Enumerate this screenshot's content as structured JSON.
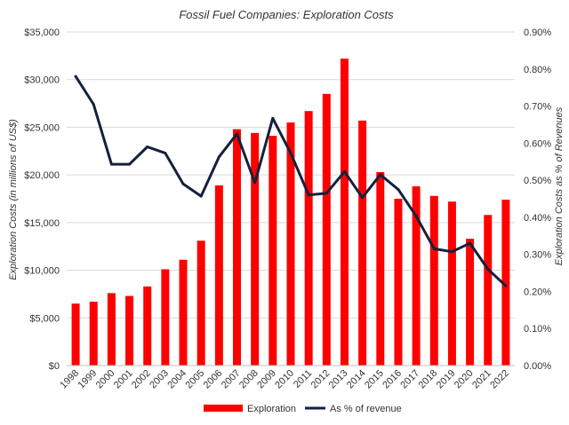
{
  "chart_data": {
    "type": "bar",
    "title": "Fossil Fuel Companies: Exploration Costs",
    "xlabel": "",
    "ylabel": "Exploration Costs (in millions of US$)",
    "y2label": "Exploration Costs as % of Revenues",
    "ylim": [
      0,
      35000
    ],
    "y2lim": [
      0,
      0.9
    ],
    "y_ticks": [
      "$0",
      "$5,000",
      "$10,000",
      "$15,000",
      "$20,000",
      "$25,000",
      "$30,000",
      "$35,000"
    ],
    "y2_ticks": [
      "0.00%",
      "0.10%",
      "0.20%",
      "0.30%",
      "0.40%",
      "0.50%",
      "0.60%",
      "0.70%",
      "0.80%",
      "0.90%"
    ],
    "categories": [
      "1998",
      "1999",
      "2000",
      "2001",
      "2002",
      "2003",
      "2004",
      "2005",
      "2006",
      "2007",
      "2008",
      "2009",
      "2010",
      "2011",
      "2012",
      "2013",
      "2014",
      "2015",
      "2016",
      "2017",
      "2018",
      "2019",
      "2020",
      "2021",
      "2022"
    ],
    "series": [
      {
        "name": "Exploration",
        "type": "bar",
        "axis": "left",
        "color": "#ff0000",
        "values": [
          6500,
          6700,
          7600,
          7300,
          8300,
          10100,
          11100,
          13100,
          18900,
          24800,
          24400,
          24100,
          25500,
          26700,
          28500,
          32200,
          25700,
          20300,
          17500,
          18800,
          17800,
          17200,
          13300,
          15800,
          17400
        ]
      },
      {
        "name": "As % of revenue",
        "type": "line",
        "axis": "right",
        "color": "#14213d",
        "values": [
          0.78,
          0.705,
          0.543,
          0.543,
          0.59,
          0.573,
          0.49,
          0.457,
          0.563,
          0.625,
          0.493,
          0.667,
          0.573,
          0.46,
          0.465,
          0.523,
          0.453,
          0.515,
          0.475,
          0.403,
          0.315,
          0.307,
          0.33,
          0.26,
          0.215
        ]
      }
    ],
    "legend": {
      "position": "bottom",
      "items": [
        "Exploration",
        "As % of revenue"
      ]
    },
    "grid": true
  }
}
